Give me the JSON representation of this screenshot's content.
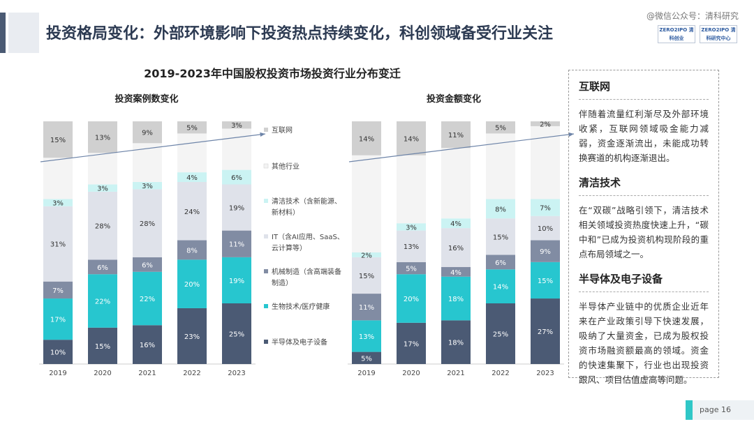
{
  "header": {
    "title": "投资格局变化：外部环境影响下投资热点持续变化，科创领域备受行业关注",
    "watermark": "@微信公众号：清科研究",
    "logo_left": "ZERO2IPO 清科创业",
    "logo_right": "ZERO2IPO 清科研究中心"
  },
  "colors": {
    "internet": "#d0d0d0",
    "other": "#f4f4f4",
    "cleantech": "#cbf3f3",
    "it": "#dfe2ea",
    "machinery": "#818ca3",
    "biotech": "#27c6cf",
    "semi": "#4b5a74",
    "accent": "#4a5a73"
  },
  "chart_data": [
    {
      "type": "bar",
      "stacked": true,
      "title": "投资案例数变化",
      "categories": [
        "2019",
        "2020",
        "2021",
        "2022",
        "2023"
      ],
      "ylim": [
        0,
        100
      ],
      "grid": false,
      "series": [
        {
          "name": "半导体及电子设备",
          "color": "#4b5a74",
          "values": [
            10,
            15,
            16,
            23,
            25
          ]
        },
        {
          "name": "生物技术/医疗健康",
          "color": "#27c6cf",
          "values": [
            17,
            22,
            22,
            20,
            19
          ]
        },
        {
          "name": "机械制造（含高端装备制造）",
          "color": "#818ca3",
          "values": [
            7,
            6,
            6,
            8,
            11
          ]
        },
        {
          "name": "IT（含AI应用、SaaS、云计算等）",
          "color": "#dfe2ea",
          "values": [
            31,
            28,
            28,
            24,
            19
          ]
        },
        {
          "name": "清洁技术（含新能源、新材料）",
          "color": "#cbf3f3",
          "values": [
            3,
            3,
            3,
            4,
            6
          ]
        },
        {
          "name": "其他行业",
          "color": "#f4f4f4",
          "values": [
            17,
            13,
            16,
            16,
            17
          ]
        },
        {
          "name": "互联网",
          "color": "#d0d0d0",
          "values": [
            15,
            13,
            9,
            5,
            3
          ]
        }
      ]
    },
    {
      "type": "bar",
      "stacked": true,
      "title": "投资金额变化",
      "categories": [
        "2019",
        "2020",
        "2021",
        "2022",
        "2023"
      ],
      "ylim": [
        0,
        100
      ],
      "grid": false,
      "series": [
        {
          "name": "半导体及电子设备",
          "color": "#4b5a74",
          "values": [
            5,
            17,
            18,
            25,
            27
          ]
        },
        {
          "name": "生物技术/医疗健康",
          "color": "#27c6cf",
          "values": [
            13,
            20,
            18,
            14,
            15
          ]
        },
        {
          "name": "机械制造（含高端装备制造）",
          "color": "#818ca3",
          "values": [
            11,
            5,
            4,
            6,
            9
          ]
        },
        {
          "name": "IT（含AI应用、SaaS、云计算等）",
          "color": "#dfe2ea",
          "values": [
            15,
            13,
            16,
            15,
            10
          ]
        },
        {
          "name": "清洁技术（含新能源、新材料）",
          "color": "#cbf3f3",
          "values": [
            2,
            3,
            4,
            8,
            7
          ]
        },
        {
          "name": "其他行业",
          "color": "#f4f4f4",
          "values": [
            40,
            28,
            29,
            27,
            30
          ]
        },
        {
          "name": "互联网",
          "color": "#d0d0d0",
          "values": [
            14,
            14,
            11,
            5,
            2
          ]
        }
      ]
    }
  ],
  "chart_meta": {
    "main_title": "2019-2023年中国股权投资市场投资行业分布变迁"
  },
  "legend": [
    {
      "label": "互联网",
      "color": "#d0d0d0"
    },
    {
      "label": "其他行业",
      "color": "#f4f4f4"
    },
    {
      "label": "清洁技术（含新能源、",
      "label2": "新材料）",
      "color": "#cbf3f3"
    },
    {
      "label": "IT（含AI应用、SaaS、",
      "label2": "云计算等）",
      "color": "#dfe2ea"
    },
    {
      "label": "机械制造（含高端装备",
      "label2": "制造）",
      "color": "#818ca3"
    },
    {
      "label": "生物技术/医疗健康",
      "color": "#27c6cf"
    },
    {
      "label": "半导体及电子设备",
      "color": "#4b5a74"
    }
  ],
  "notes": [
    {
      "title": "互联网",
      "body": "伴随着流量红利渐尽及外部环境收紧，互联网领域吸金能力减弱，资金逐渐流出，未能成功转换赛道的机构逐渐退出。"
    },
    {
      "title": "清洁技术",
      "body": "在“双碳”战略引领下，清洁技术相关领域投资热度快速上升，“碳中和”已成为投资机构现阶段的重点布局领域之一。"
    },
    {
      "title": "半导体及电子设备",
      "body": "半导体产业链中的优质企业近年来在产业政策引导下快速发展，吸纳了大量资金，已成为股权投资市场融资额最高的领域。资金的快速集聚下，行业也出现投资跟风、项目估值虚高等问题。"
    }
  ],
  "footer": {
    "page_label": "page  16"
  }
}
